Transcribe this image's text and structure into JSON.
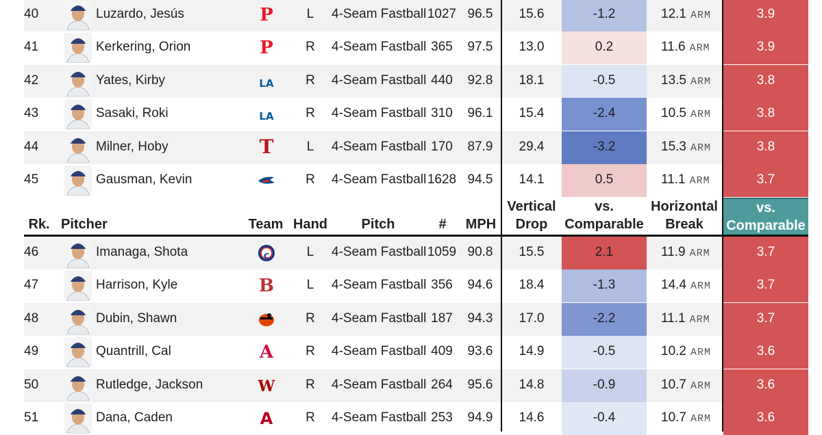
{
  "colors": {
    "stripe": "#f2f2f2",
    "break_plus_red": "#d35454",
    "header_teal": "#4f9b9b",
    "blue_strong": "#6b86c8",
    "blue_mid": "#8fa4d6",
    "blue_light": "#c7d1ea",
    "blue_faint": "#dde4f3",
    "pink_faint": "#f6e1e1",
    "pink_light": "#f0caca"
  },
  "header": {
    "rank": "Rk.",
    "pitcher": "Pitcher",
    "team": "Team",
    "hand": "Hand",
    "pitch": "Pitch",
    "count": "#",
    "mph": "MPH",
    "vdrop_1": "Vertical",
    "vdrop_2": "Drop",
    "vcmp_1": "vs.",
    "vcmp_2": "Comparable",
    "hbrk_1": "Horizontal",
    "hbrk_2": "Break",
    "hcmp_1": "vs.",
    "hcmp_2": "Comparable"
  },
  "rows_top": [
    {
      "rank": "40",
      "name": "Luzardo, Jesús",
      "team": "phillies-logo",
      "hand": "L",
      "pitch": "4-Seam Fastball",
      "count": "1027",
      "mph": "96.5",
      "vdrop": "15.6",
      "vcmp": "-1.2",
      "vcmp_color": "#b4c2e3",
      "hbrk": "12.1",
      "hunit": "ARM",
      "hcmp": "3.9"
    },
    {
      "rank": "41",
      "name": "Kerkering, Orion",
      "team": "phillies-logo",
      "hand": "R",
      "pitch": "4-Seam Fastball",
      "count": "365",
      "mph": "97.5",
      "vdrop": "13.0",
      "vcmp": "0.2",
      "vcmp_color": "#f6e1e1",
      "hbrk": "11.6",
      "hunit": "ARM",
      "hcmp": "3.9"
    },
    {
      "rank": "42",
      "name": "Yates, Kirby",
      "team": "dodgers-logo",
      "hand": "R",
      "pitch": "4-Seam Fastball",
      "count": "440",
      "mph": "92.8",
      "vdrop": "18.1",
      "vcmp": "-0.5",
      "vcmp_color": "#dde4f3",
      "hbrk": "13.5",
      "hunit": "ARM",
      "hcmp": "3.8"
    },
    {
      "rank": "43",
      "name": "Sasaki, Roki",
      "team": "dodgers-logo",
      "hand": "R",
      "pitch": "4-Seam Fastball",
      "count": "310",
      "mph": "96.1",
      "vdrop": "15.4",
      "vcmp": "-2.4",
      "vcmp_color": "#7891cf",
      "hbrk": "10.5",
      "hunit": "ARM",
      "hcmp": "3.8"
    },
    {
      "rank": "44",
      "name": "Milner, Hoby",
      "team": "rangers-logo",
      "hand": "L",
      "pitch": "4-Seam Fastball",
      "count": "170",
      "mph": "87.9",
      "vdrop": "29.4",
      "vcmp": "-3.2",
      "vcmp_color": "#5f7cc2",
      "hbrk": "15.3",
      "hunit": "ARM",
      "hcmp": "3.8"
    },
    {
      "rank": "45",
      "name": "Gausman, Kevin",
      "team": "blue-jays-logo",
      "hand": "R",
      "pitch": "4-Seam Fastball",
      "count": "1628",
      "mph": "94.5",
      "vdrop": "14.1",
      "vcmp": "0.5",
      "vcmp_color": "#f0caca",
      "hbrk": "11.1",
      "hunit": "ARM",
      "hcmp": "3.7"
    }
  ],
  "rows_bottom": [
    {
      "rank": "46",
      "name": "Imanaga, Shota",
      "team": "cubs-logo",
      "hand": "L",
      "pitch": "4-Seam Fastball",
      "count": "1059",
      "mph": "90.8",
      "vdrop": "15.5",
      "vcmp": "2.1",
      "vcmp_color": "#d35454",
      "hbrk": "11.9",
      "hunit": "ARM",
      "hcmp": "3.7"
    },
    {
      "rank": "47",
      "name": "Harrison, Kyle",
      "team": "red-sox-logo",
      "hand": "L",
      "pitch": "4-Seam Fastball",
      "count": "356",
      "mph": "94.6",
      "vdrop": "18.4",
      "vcmp": "-1.3",
      "vcmp_color": "#aebde1",
      "hbrk": "14.4",
      "hunit": "ARM",
      "hcmp": "3.7"
    },
    {
      "rank": "48",
      "name": "Dubin, Shawn",
      "team": "orioles-logo",
      "hand": "R",
      "pitch": "4-Seam Fastball",
      "count": "187",
      "mph": "94.3",
      "vdrop": "17.0",
      "vcmp": "-2.2",
      "vcmp_color": "#7f96d1",
      "hbrk": "11.1",
      "hunit": "ARM",
      "hcmp": "3.7"
    },
    {
      "rank": "49",
      "name": "Quantrill, Cal",
      "team": "braves-logo",
      "hand": "R",
      "pitch": "4-Seam Fastball",
      "count": "409",
      "mph": "93.6",
      "vdrop": "14.9",
      "vcmp": "-0.5",
      "vcmp_color": "#dde4f3",
      "hbrk": "10.2",
      "hunit": "ARM",
      "hcmp": "3.6"
    },
    {
      "rank": "50",
      "name": "Rutledge, Jackson",
      "team": "nationals-logo",
      "hand": "R",
      "pitch": "4-Seam Fastball",
      "count": "264",
      "mph": "95.6",
      "vdrop": "14.8",
      "vcmp": "-0.9",
      "vcmp_color": "#c7d1ea",
      "hbrk": "10.7",
      "hunit": "ARM",
      "hcmp": "3.6"
    },
    {
      "rank": "51",
      "name": "Dana, Caden",
      "team": "angels-logo",
      "hand": "R",
      "pitch": "4-Seam Fastball",
      "count": "253",
      "mph": "94.9",
      "vdrop": "14.6",
      "vcmp": "-0.4",
      "vcmp_color": "#e1e7f4",
      "hbrk": "10.7",
      "hunit": "ARM",
      "hcmp": "3.6"
    }
  ]
}
